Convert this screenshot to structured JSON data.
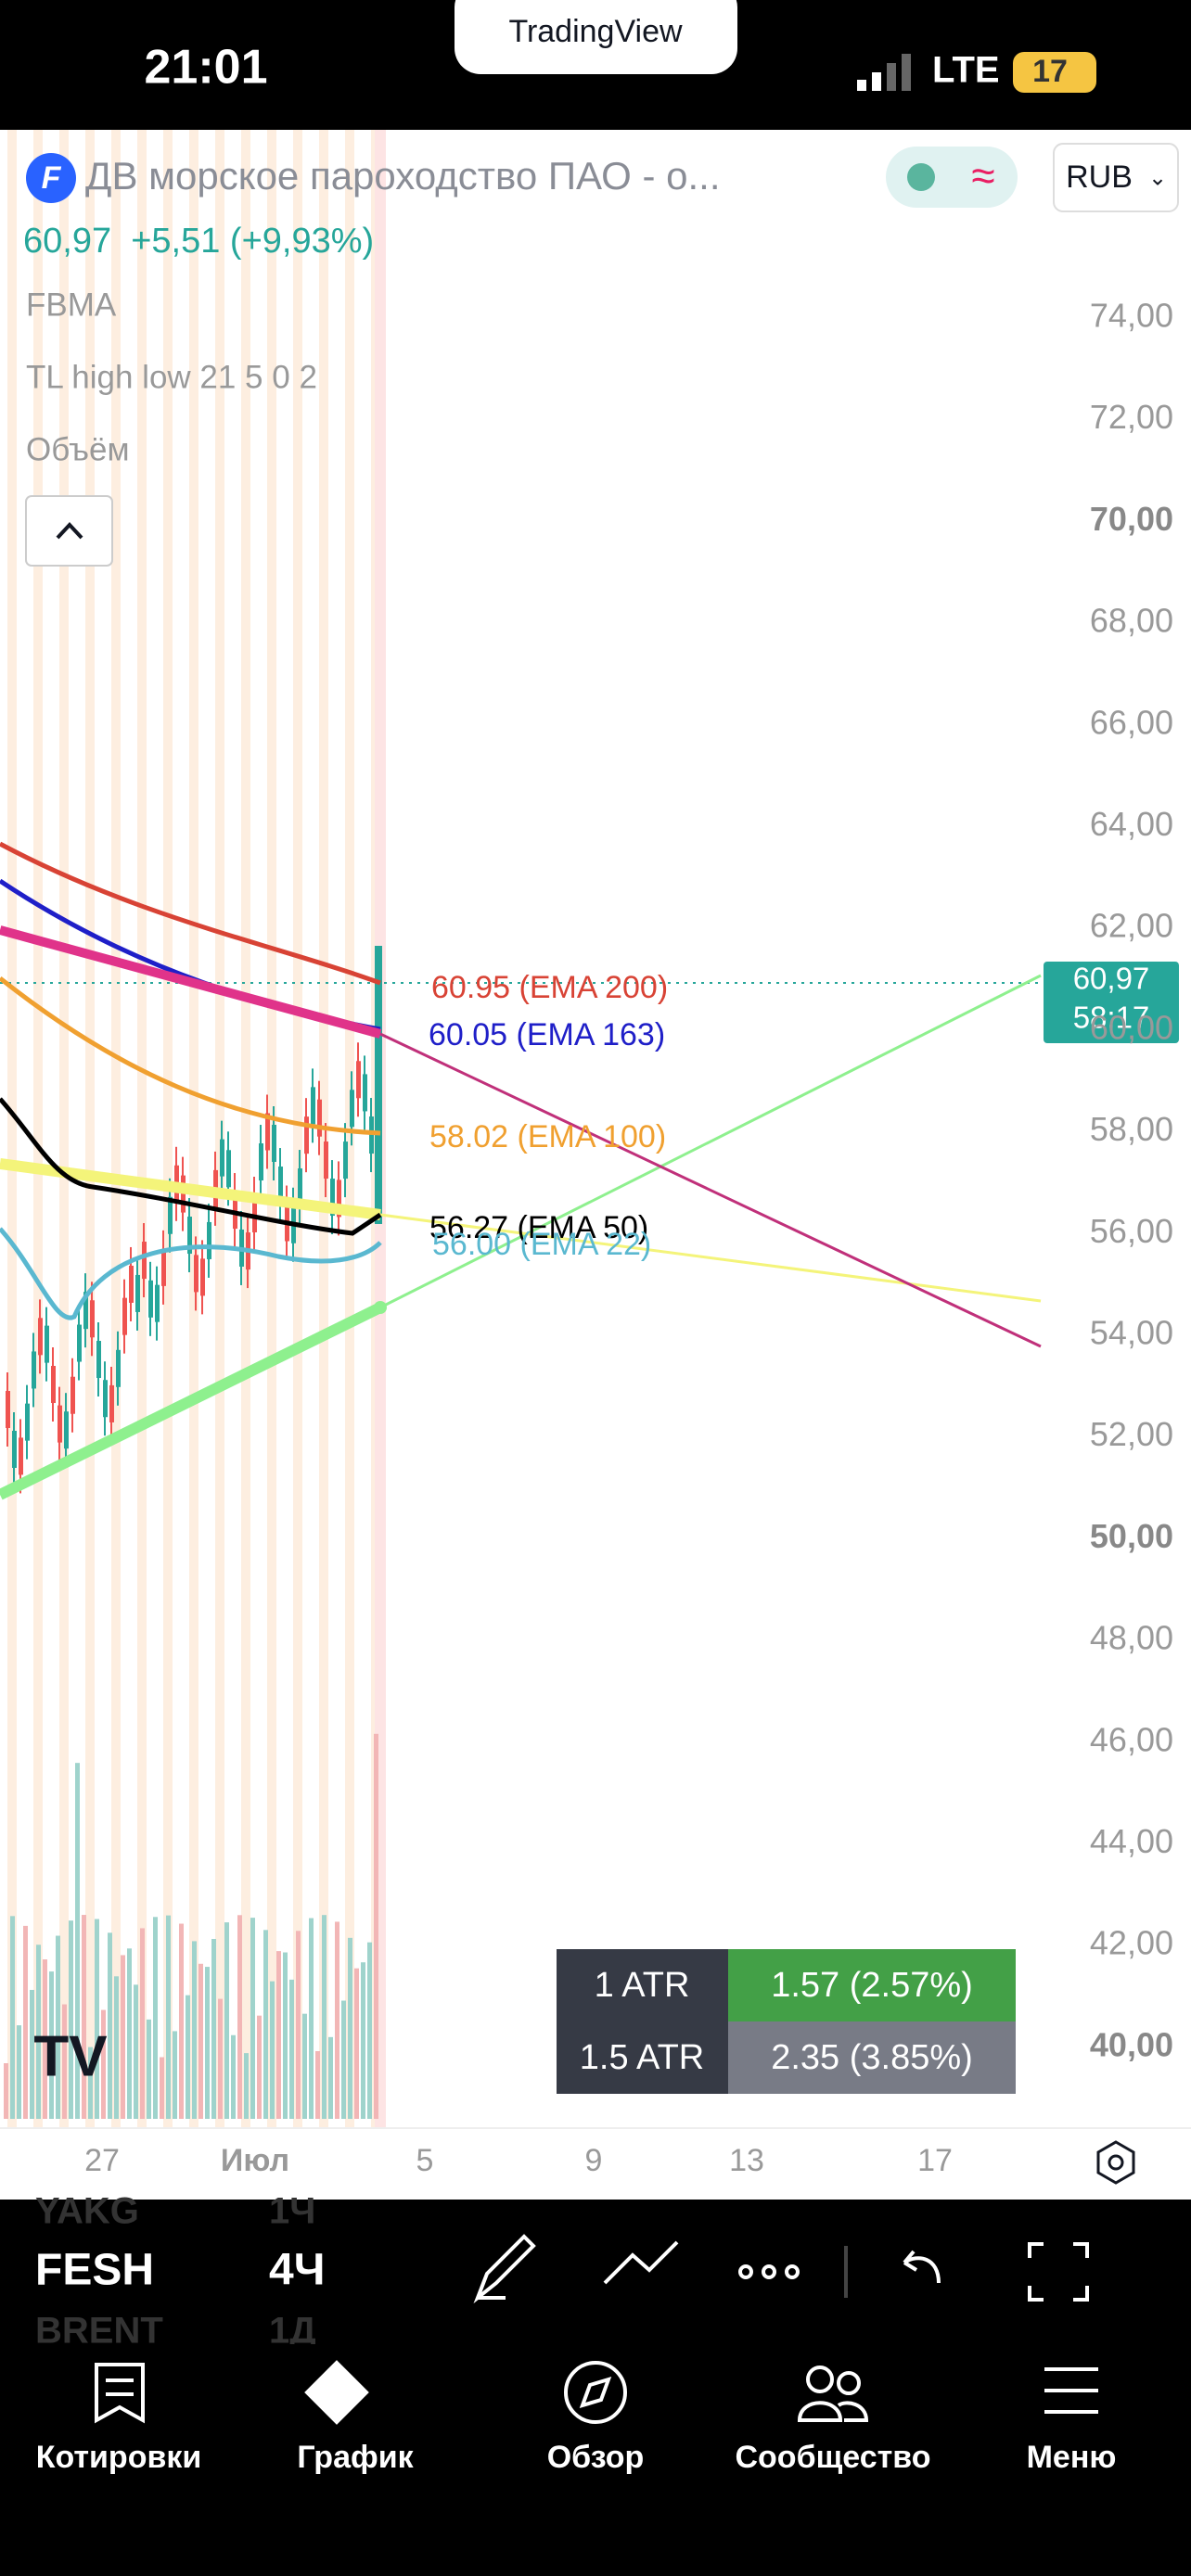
{
  "status": {
    "time": "21:01",
    "brand": "TradingView",
    "network": "LTE",
    "battery": "17"
  },
  "header": {
    "title": "ДВ морское пароходство ПАО - о...",
    "currency": "RUB",
    "quote": "60,97  +5,51 (+9,93%)",
    "indicators": [
      "FBMA",
      "TL high low 21 5 0 2",
      "Объём"
    ]
  },
  "price_axis": {
    "labels": [
      "74,00",
      "72,00",
      "70,00",
      "68,00",
      "66,00",
      "64,00",
      "62,00",
      "60,00",
      "58,00",
      "56,00",
      "54,00",
      "52,00",
      "50,00",
      "48,00",
      "46,00",
      "44,00",
      "42,00",
      "40,00"
    ]
  },
  "current": {
    "price": "60,97",
    "timer": "58:17"
  },
  "ema_labels": [
    "60.95 (EMA 200)",
    "60.05 (EMA 163)",
    "58.02 (EMA 100)",
    "56.27 (EMA 50)",
    "56.00 (EMA 22)"
  ],
  "atr": {
    "rows": [
      [
        "1 ATR",
        "1.57 (2.57%)"
      ],
      [
        "1.5 ATR",
        "2.35 (3.85%)"
      ]
    ]
  },
  "time_axis": [
    "27",
    "Июл",
    "5",
    "9",
    "13",
    "17"
  ],
  "toolbar": {
    "symbols": [
      "YAKG",
      "FESH",
      "BRENT"
    ],
    "intervals": [
      "1Ч",
      "4Ч",
      "1Д"
    ]
  },
  "nav": [
    "Котировки",
    "График",
    "Обзор",
    "Сообщество",
    "Меню"
  ]
}
